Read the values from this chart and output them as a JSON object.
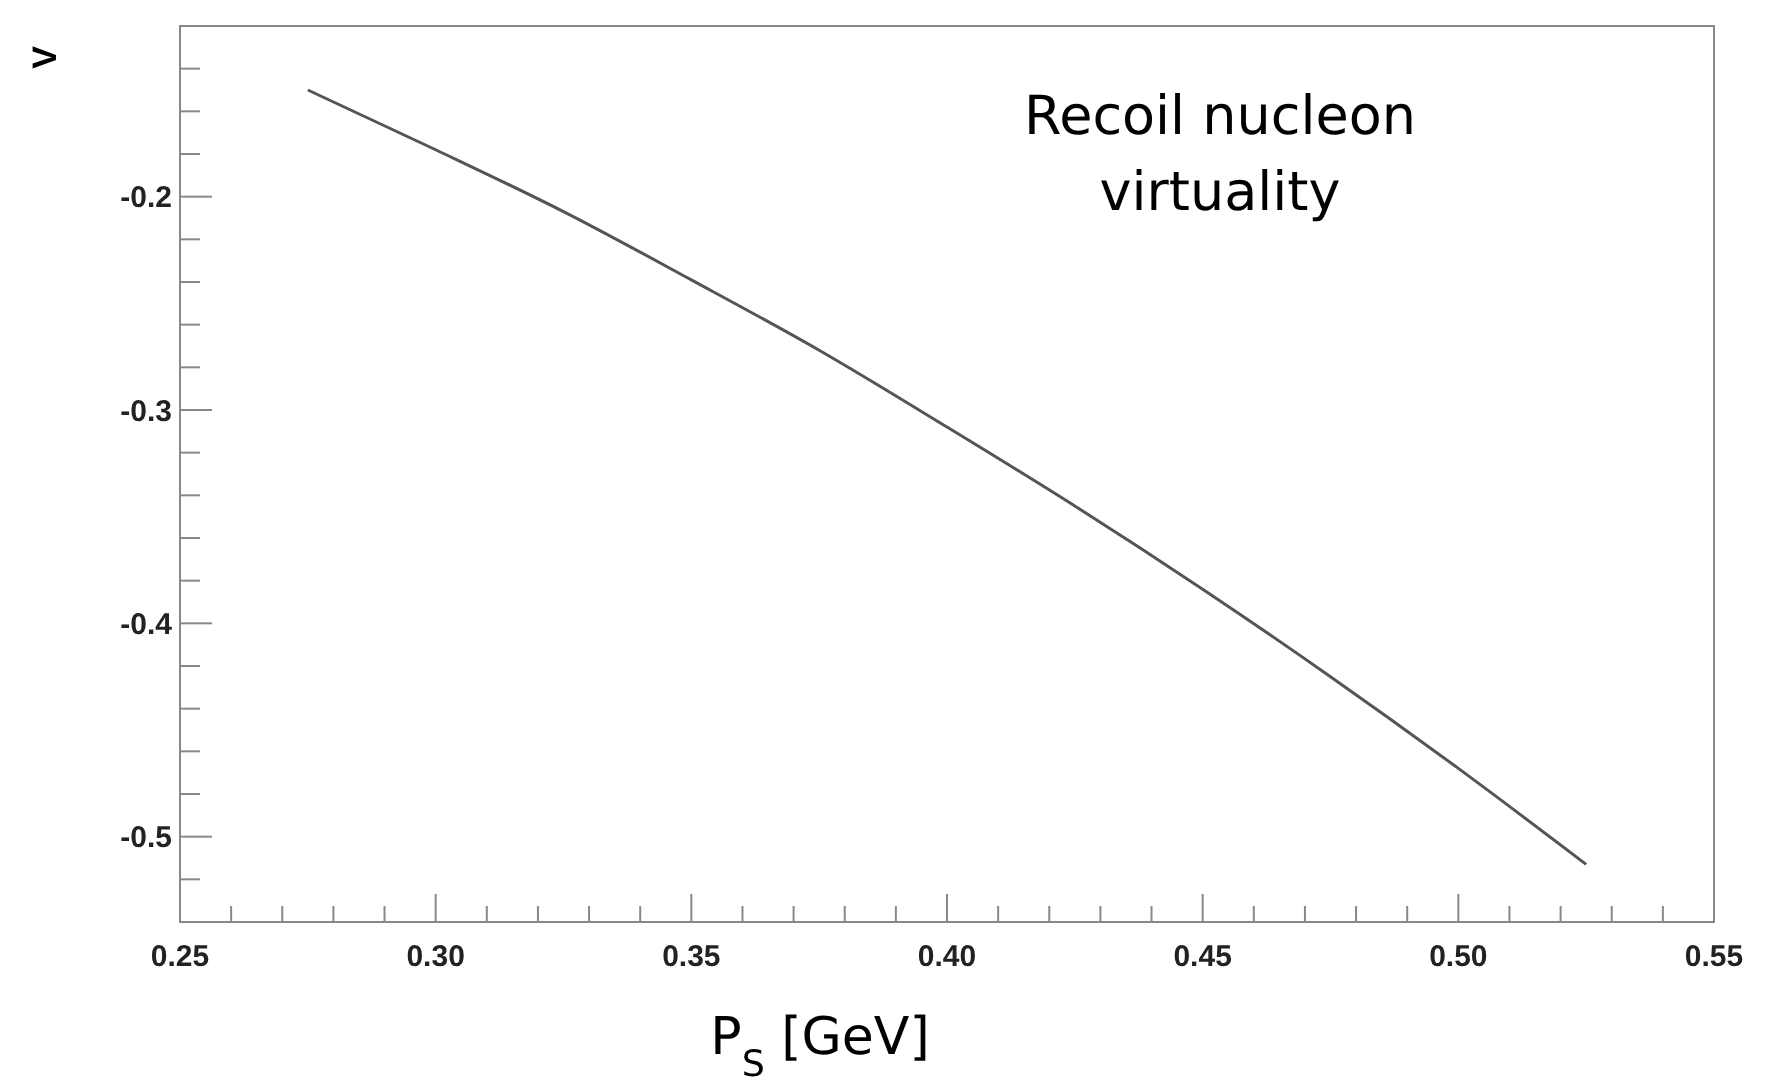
{
  "chart_data": {
    "type": "line",
    "xlabel": "P$_{S}$ [GeV]",
    "ylabel": "V",
    "annotations": [
      "Recoil nucleon virtuality"
    ],
    "x": [
      0.275,
      0.3,
      0.325,
      0.35,
      0.375,
      0.4,
      0.425,
      0.45,
      0.475,
      0.5,
      0.525
    ],
    "series": [
      {
        "color": "#555555",
        "values": [
          -0.15,
          -0.178,
          -0.207,
          -0.239,
          -0.272,
          -0.308,
          -0.345,
          -0.384,
          -0.425,
          -0.468,
          -0.513
        ]
      }
    ],
    "xlim": [
      0.25,
      0.55
    ],
    "xticks": [
      {
        "value": 0.25,
        "label": "0.25"
      },
      {
        "value": 0.26,
        "label": null
      },
      {
        "value": 0.27,
        "label": null
      },
      {
        "value": 0.28,
        "label": null
      },
      {
        "value": 0.29,
        "label": null
      },
      {
        "value": 0.3,
        "label": "0.30"
      },
      {
        "value": 0.31,
        "label": null
      },
      {
        "value": 0.32,
        "label": null
      },
      {
        "value": 0.33,
        "label": null
      },
      {
        "value": 0.34,
        "label": null
      },
      {
        "value": 0.35,
        "label": "0.35"
      },
      {
        "value": 0.36,
        "label": null
      },
      {
        "value": 0.37,
        "label": null
      },
      {
        "value": 0.38,
        "label": null
      },
      {
        "value": 0.39,
        "label": null
      },
      {
        "value": 0.4,
        "label": "0.40"
      },
      {
        "value": 0.41,
        "label": null
      },
      {
        "value": 0.42,
        "label": null
      },
      {
        "value": 0.43,
        "label": null
      },
      {
        "value": 0.44,
        "label": null
      },
      {
        "value": 0.45,
        "label": "0.45"
      },
      {
        "value": 0.46,
        "label": null
      },
      {
        "value": 0.47,
        "label": null
      },
      {
        "value": 0.48,
        "label": null
      },
      {
        "value": 0.49,
        "label": null
      },
      {
        "value": 0.5,
        "label": "0.50"
      },
      {
        "value": 0.51,
        "label": null
      },
      {
        "value": 0.52,
        "label": null
      },
      {
        "value": 0.53,
        "label": null
      },
      {
        "value": 0.54,
        "label": null
      },
      {
        "value": 0.55,
        "label": "0.55"
      }
    ],
    "ylim": [
      -0.54,
      -0.12
    ],
    "yticks": [
      {
        "value": -0.14,
        "label": null
      },
      {
        "value": -0.16,
        "label": null
      },
      {
        "value": -0.18,
        "label": null
      },
      -0.2,
      {
        "value": -0.22,
        "label": null
      },
      {
        "value": -0.24,
        "label": null
      },
      {
        "value": -0.26,
        "label": null
      },
      {
        "value": -0.28,
        "label": null
      },
      -0.3,
      {
        "value": -0.32,
        "label": null
      },
      {
        "value": -0.34,
        "label": null
      },
      {
        "value": -0.36,
        "label": null
      },
      {
        "value": -0.38,
        "label": null
      },
      -0.4,
      {
        "value": -0.42,
        "label": null
      },
      {
        "value": -0.44,
        "label": null
      },
      {
        "value": -0.46,
        "label": null
      },
      {
        "value": -0.48,
        "label": null
      },
      -0.5,
      {
        "value": -0.52,
        "label": null
      }
    ],
    "grid": false,
    "marker": "none",
    "line_style": "solid"
  }
}
